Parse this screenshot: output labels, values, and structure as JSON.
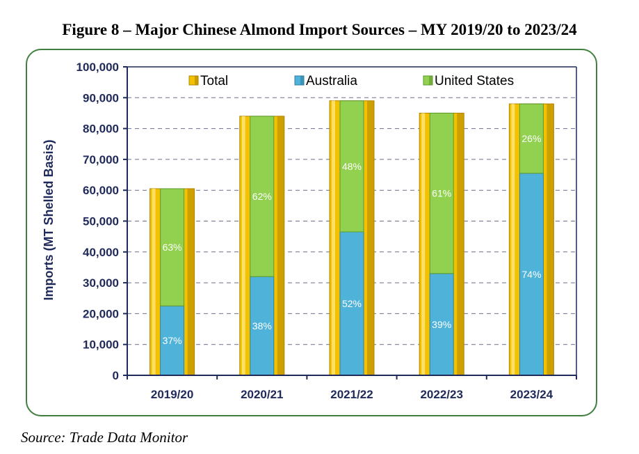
{
  "figure": {
    "title": "Figure 8 – Major Chinese Almond Import Sources – MY 2019/20 to 2023/24",
    "source": "Source:  Trade Data Monitor"
  },
  "colors": {
    "total": "#f2c200",
    "total_dark": "#b08400",
    "australia": "#4fb3d9",
    "united_states": "#92d050",
    "axis": "#1f2a5a",
    "grid": "#6b6f8a",
    "frame": "#3f7f3f"
  },
  "chart_data": {
    "type": "bar",
    "ylabel": "Imports (MT Shelled Basis)",
    "xlabel": "",
    "ylim": [
      0,
      100000
    ],
    "yticks": [
      0,
      10000,
      20000,
      30000,
      40000,
      50000,
      60000,
      70000,
      80000,
      90000,
      100000
    ],
    "ytick_labels": [
      "0",
      "10,000",
      "20,000",
      "30,000",
      "40,000",
      "50,000",
      "60,000",
      "70,000",
      "80,000",
      "90,000",
      "100,000"
    ],
    "grid": true,
    "legend_position": "top",
    "categories": [
      "2019/20",
      "2020/21",
      "2021/22",
      "2022/23",
      "2023/24"
    ],
    "series": [
      {
        "name": "Total",
        "values": [
          60500,
          84000,
          89000,
          85000,
          88000
        ]
      },
      {
        "name": "Australia",
        "values": [
          22500,
          32000,
          46500,
          33000,
          65500
        ],
        "labels": [
          "37%",
          "38%",
          "52%",
          "39%",
          "74%"
        ]
      },
      {
        "name": "United States",
        "values": [
          38000,
          52000,
          42500,
          52000,
          22500
        ],
        "labels": [
          "63%",
          "62%",
          "48%",
          "61%",
          "26%"
        ]
      }
    ]
  }
}
